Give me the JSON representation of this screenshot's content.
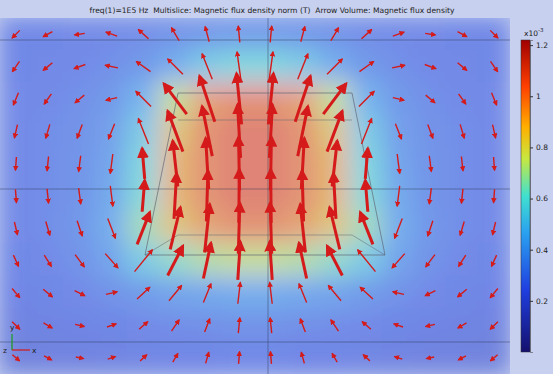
{
  "chart_data": {
    "type": "heatmap",
    "title": "freq(1)=1E5 Hz  Multislice: Magnetic flux density norm (T)  Arrow Volume: Magnetic flux density",
    "heatmap": {
      "values": [
        [
          0.25,
          0.25,
          0.26,
          0.27,
          0.28,
          0.3,
          0.32,
          0.33,
          0.33,
          0.32,
          0.3,
          0.28,
          0.27,
          0.26,
          0.25,
          0.25
        ],
        [
          0.25,
          0.26,
          0.27,
          0.29,
          0.33,
          0.42,
          0.55,
          0.6,
          0.6,
          0.55,
          0.42,
          0.33,
          0.29,
          0.27,
          0.26,
          0.25
        ],
        [
          0.26,
          0.27,
          0.29,
          0.33,
          0.45,
          0.75,
          0.95,
          1.0,
          1.0,
          0.95,
          0.75,
          0.45,
          0.33,
          0.29,
          0.27,
          0.26
        ],
        [
          0.26,
          0.28,
          0.3,
          0.36,
          0.55,
          0.85,
          1.0,
          1.05,
          1.05,
          1.0,
          0.85,
          0.55,
          0.36,
          0.3,
          0.28,
          0.26
        ],
        [
          0.26,
          0.28,
          0.31,
          0.38,
          0.6,
          0.9,
          1.0,
          1.05,
          1.05,
          1.0,
          0.9,
          0.6,
          0.38,
          0.31,
          0.28,
          0.26
        ],
        [
          0.26,
          0.28,
          0.31,
          0.4,
          0.62,
          0.9,
          1.0,
          1.05,
          1.05,
          1.0,
          0.9,
          0.62,
          0.4,
          0.31,
          0.28,
          0.26
        ],
        [
          0.26,
          0.28,
          0.32,
          0.42,
          0.68,
          0.85,
          0.95,
          1.0,
          1.0,
          0.95,
          0.85,
          0.68,
          0.42,
          0.32,
          0.28,
          0.26
        ],
        [
          0.25,
          0.27,
          0.3,
          0.38,
          0.55,
          0.65,
          0.72,
          0.75,
          0.75,
          0.72,
          0.65,
          0.55,
          0.38,
          0.3,
          0.27,
          0.25
        ],
        [
          0.24,
          0.25,
          0.27,
          0.3,
          0.34,
          0.38,
          0.4,
          0.42,
          0.42,
          0.4,
          0.38,
          0.34,
          0.3,
          0.27,
          0.25,
          0.24
        ],
        [
          0.22,
          0.23,
          0.24,
          0.25,
          0.27,
          0.28,
          0.29,
          0.3,
          0.3,
          0.29,
          0.28,
          0.27,
          0.25,
          0.24,
          0.23,
          0.22
        ],
        [
          0.2,
          0.21,
          0.21,
          0.22,
          0.23,
          0.24,
          0.24,
          0.25,
          0.25,
          0.24,
          0.24,
          0.23,
          0.22,
          0.21,
          0.21,
          0.2
        ]
      ]
    },
    "arrows": {
      "color": "#d41a1a",
      "bx": [
        [
          -0.15,
          -0.18,
          -0.2,
          -0.22,
          -0.2,
          -0.15,
          -0.08,
          -0.03,
          0.03,
          0.08,
          0.15,
          0.2,
          0.22,
          0.2,
          0.18,
          0.15
        ],
        [
          -0.14,
          -0.18,
          -0.22,
          -0.25,
          -0.28,
          -0.3,
          -0.2,
          -0.08,
          0.08,
          0.2,
          0.3,
          0.28,
          0.25,
          0.22,
          0.18,
          0.14
        ],
        [
          -0.1,
          -0.14,
          -0.18,
          -0.22,
          -0.3,
          -0.45,
          -0.3,
          -0.1,
          0.1,
          0.3,
          0.45,
          0.3,
          0.22,
          0.18,
          0.14,
          0.1
        ],
        [
          -0.06,
          -0.08,
          -0.1,
          -0.12,
          -0.2,
          -0.3,
          -0.2,
          -0.06,
          0.06,
          0.2,
          0.3,
          0.2,
          0.12,
          0.1,
          0.08,
          0.06
        ],
        [
          -0.02,
          -0.03,
          -0.04,
          -0.05,
          -0.05,
          -0.1,
          -0.06,
          -0.02,
          0.02,
          0.06,
          0.1,
          0.05,
          0.05,
          0.04,
          0.03,
          0.02
        ],
        [
          0.02,
          0.03,
          0.04,
          0.05,
          0.05,
          0.05,
          0.03,
          0.01,
          -0.01,
          -0.03,
          -0.05,
          -0.05,
          -0.05,
          -0.04,
          -0.03,
          -0.02
        ],
        [
          0.06,
          0.08,
          0.1,
          0.15,
          0.25,
          0.2,
          0.1,
          0.03,
          -0.03,
          -0.1,
          -0.2,
          -0.25,
          -0.15,
          -0.1,
          -0.08,
          -0.06
        ],
        [
          0.1,
          0.14,
          0.18,
          0.25,
          0.35,
          0.3,
          0.15,
          0.05,
          -0.05,
          -0.15,
          -0.3,
          -0.35,
          -0.25,
          -0.18,
          -0.14,
          -0.1
        ],
        [
          0.15,
          0.18,
          0.2,
          0.22,
          0.25,
          0.25,
          0.15,
          0.05,
          -0.05,
          -0.15,
          -0.25,
          -0.25,
          -0.22,
          -0.2,
          -0.18,
          -0.15
        ],
        [
          0.15,
          0.17,
          0.18,
          0.18,
          0.17,
          0.15,
          0.1,
          0.03,
          -0.03,
          -0.1,
          -0.15,
          -0.17,
          -0.18,
          -0.18,
          -0.17,
          -0.15
        ],
        [
          0.14,
          0.15,
          0.15,
          0.15,
          0.13,
          0.1,
          0.06,
          0.02,
          -0.02,
          -0.06,
          -0.1,
          -0.13,
          -0.15,
          -0.15,
          -0.15,
          -0.14
        ]
      ],
      "by": [
        [
          -0.15,
          -0.1,
          -0.03,
          0.08,
          0.18,
          0.25,
          0.3,
          0.32,
          0.32,
          0.3,
          0.25,
          0.18,
          0.08,
          -0.03,
          -0.1,
          -0.15
        ],
        [
          -0.2,
          -0.15,
          -0.08,
          0.05,
          0.2,
          0.3,
          0.5,
          0.58,
          0.58,
          0.5,
          0.3,
          0.2,
          0.05,
          -0.08,
          -0.15,
          -0.2
        ],
        [
          -0.24,
          -0.2,
          -0.15,
          -0.05,
          0.3,
          0.6,
          0.9,
          1.0,
          1.0,
          0.9,
          0.6,
          0.3,
          -0.05,
          -0.15,
          -0.2,
          -0.24
        ],
        [
          -0.26,
          -0.27,
          -0.27,
          -0.3,
          0.5,
          0.8,
          0.98,
          1.05,
          1.05,
          0.98,
          0.8,
          0.5,
          -0.3,
          -0.27,
          -0.27,
          -0.26
        ],
        [
          -0.26,
          -0.28,
          -0.31,
          -0.38,
          0.6,
          0.9,
          1.0,
          1.05,
          1.05,
          1.0,
          0.9,
          0.6,
          -0.38,
          -0.31,
          -0.28,
          -0.26
        ],
        [
          -0.26,
          -0.28,
          -0.31,
          -0.4,
          0.62,
          0.9,
          1.0,
          1.05,
          1.05,
          1.0,
          0.9,
          0.62,
          -0.4,
          -0.31,
          -0.28,
          -0.26
        ],
        [
          -0.25,
          -0.27,
          -0.3,
          -0.39,
          0.63,
          0.83,
          0.95,
          1.0,
          1.0,
          0.95,
          0.83,
          0.63,
          -0.39,
          -0.3,
          -0.27,
          -0.25
        ],
        [
          -0.22,
          -0.22,
          -0.24,
          -0.28,
          0.43,
          0.58,
          0.7,
          0.75,
          0.75,
          0.7,
          0.58,
          0.43,
          -0.28,
          -0.24,
          -0.22,
          -0.22
        ],
        [
          -0.18,
          -0.15,
          -0.1,
          0.05,
          0.23,
          0.3,
          0.37,
          0.42,
          0.42,
          0.37,
          0.3,
          0.23,
          0.05,
          -0.1,
          -0.15,
          -0.18
        ],
        [
          -0.15,
          -0.1,
          -0.04,
          0.06,
          0.15,
          0.22,
          0.26,
          0.3,
          0.3,
          0.26,
          0.22,
          0.15,
          0.06,
          -0.04,
          -0.1,
          -0.15
        ],
        [
          -0.12,
          -0.08,
          -0.03,
          0.05,
          0.12,
          0.17,
          0.22,
          0.24,
          0.24,
          0.22,
          0.17,
          0.12,
          0.05,
          -0.03,
          -0.08,
          -0.12
        ]
      ]
    },
    "colorbar": {
      "range": [
        0,
        1.22
      ],
      "ticks": [
        0.2,
        0.4,
        0.6,
        0.8,
        1,
        1.2
      ],
      "label": "x10",
      "exponent": "-3"
    },
    "triad": {
      "vertical": "y",
      "depth": "z",
      "horizontal": "x"
    }
  }
}
